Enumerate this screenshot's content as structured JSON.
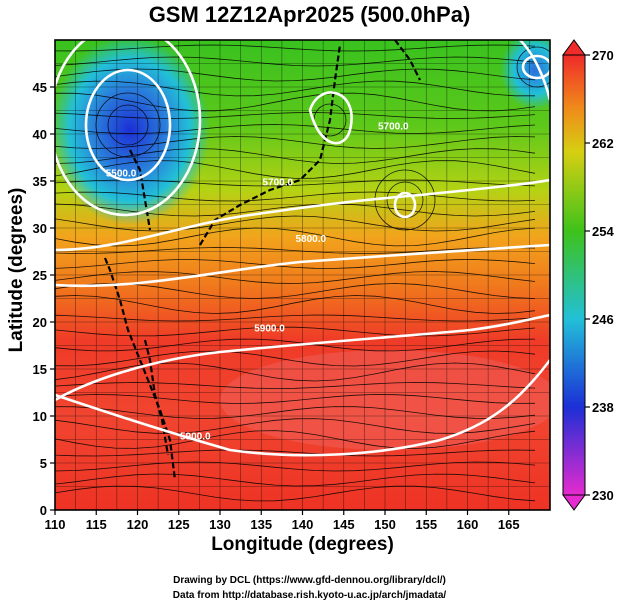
{
  "title": "GSM 12Z12Apr2025 (500.0hPa)",
  "xlabel": "Longitude (degrees)",
  "ylabel": "Latitude  (degrees)",
  "credits": {
    "line1": "Drawing by DCL (https://www.gfd-dennou.org/library/dcl/)",
    "line2": "Data from http://database.rish.kyoto-u.ac.jp/arch/jmadata/"
  },
  "chart_data": {
    "type": "heatmap",
    "variable": "temperature (K) with geopotential height contours and wind streamlines",
    "x_range": [
      110,
      170
    ],
    "y_range": [
      0,
      50
    ],
    "x_ticks": [
      110,
      115,
      120,
      125,
      130,
      135,
      140,
      145,
      150,
      155,
      160,
      165
    ],
    "y_ticks": [
      0,
      5,
      10,
      15,
      20,
      25,
      30,
      35,
      40,
      45
    ],
    "colorbar": {
      "range": [
        230,
        270
      ],
      "ticks": [
        230,
        238,
        246,
        254,
        262,
        270
      ]
    },
    "contour_labels": [
      {
        "text": "5500.0",
        "lon": 118,
        "lat": 35.5
      },
      {
        "text": "5700.0",
        "lon": 137,
        "lat": 34.5
      },
      {
        "text": "5800.0",
        "lon": 141,
        "lat": 28.5
      },
      {
        "text": "5700.0",
        "lon": 151,
        "lat": 40.5
      },
      {
        "text": "5900.0",
        "lon": 136,
        "lat": 19
      },
      {
        "text": "5900.0",
        "lon": 127,
        "lat": 7.5
      }
    ],
    "temperature_regions": [
      {
        "lon": 121,
        "lat": 42,
        "value": 238
      },
      {
        "lon": 166,
        "lat": 47,
        "value": 244
      },
      {
        "lon": 140,
        "lat": 45,
        "value": 252
      },
      {
        "lon": 140,
        "lat": 35,
        "value": 256
      },
      {
        "lon": 140,
        "lat": 27,
        "value": 262
      },
      {
        "lon": 140,
        "lat": 15,
        "value": 266
      },
      {
        "lon": 140,
        "lat": 3,
        "value": 265
      }
    ]
  },
  "colors": {
    "magenta": "#e52bcf",
    "blue": "#1c2fd6",
    "cyan": "#22c0d8",
    "green": "#3ec21a",
    "yellow": "#d6cf12",
    "orange": "#f08a1a",
    "red": "#ef2b2b"
  }
}
